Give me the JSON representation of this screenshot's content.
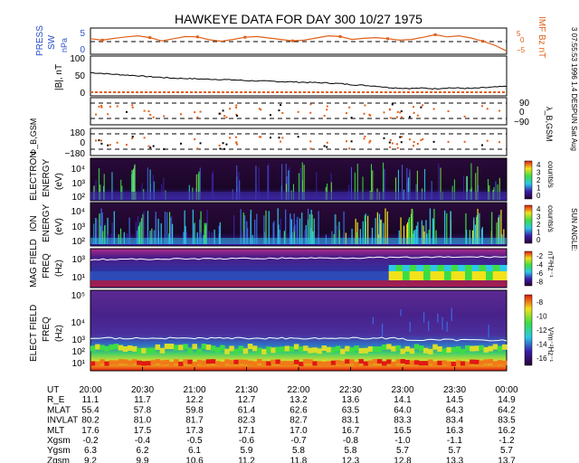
{
  "chart_data": {
    "type": "spectrogram",
    "title": "HAWKEYE DATA FOR DAY 300 10/27 1975",
    "side_note": "3 07:55:53 1996   1.4 DESPUN Sat Aug",
    "side_note2": "SUN ANGLE:",
    "time_ticks": [
      "20:00",
      "20:30",
      "21:00",
      "21:30",
      "22:00",
      "22:30",
      "23:00",
      "23:30",
      "00:00"
    ],
    "colors": {
      "accent": "#e0601a",
      "pressure_axis": "#2b50c8",
      "imf_axis": "#e0601a",
      "line": "#000000"
    },
    "panels": {
      "press": {
        "ylabel": [
          "PRESS",
          "SW",
          "nPa"
        ],
        "ticks": [
          "5",
          "0"
        ],
        "right_label": "IMF Bz nT",
        "right_ticks": [
          "5",
          "0",
          "−5"
        ],
        "pressure_series": [
          3.8,
          3.4,
          3.9,
          4.3,
          4.6,
          4.1,
          3.2,
          3.8,
          4.4,
          4.3,
          3.5,
          3.1,
          3.6,
          4.2,
          4.4,
          4.0,
          3.6,
          3.2,
          3.4,
          4.0,
          4.6,
          4.4,
          3.6,
          3.9,
          4.1,
          3.8,
          3.4,
          3.6,
          4.2,
          4.9,
          4.3,
          4.6,
          4.0,
          3.1,
          2.0,
          0.4
        ]
      },
      "b": {
        "ylabel": "|B|, nT",
        "ticks": [
          "100",
          "50",
          "0"
        ],
        "series": [
          57,
          55,
          52,
          50,
          48,
          45,
          43,
          41,
          40,
          39,
          38,
          37,
          36,
          34,
          33,
          32,
          31,
          30,
          29,
          28,
          27,
          25,
          22,
          20,
          18,
          14,
          12,
          11,
          12,
          10,
          13,
          12,
          11,
          13,
          15,
          17
        ]
      },
      "lambda": {
        "ylabel_right": "λ_B,GSM",
        "ticks": [
          "90",
          "0",
          "−90"
        ]
      },
      "phi": {
        "ylabel": "Φ_B,GSM",
        "ticks": [
          "180",
          "0",
          "−180"
        ]
      },
      "electron": {
        "ylabel": [
          "ELECTRON",
          "ENERGY",
          "(eV)"
        ],
        "ticks": [
          "10⁴",
          "10³",
          "10²"
        ],
        "unit": "counts/s",
        "cbar_ticks": [
          "4",
          "3",
          "2",
          "1",
          "0"
        ]
      },
      "ion": {
        "ylabel": [
          "ION",
          "ENERGY",
          "(eV)"
        ],
        "ticks": [
          "10⁴",
          "10³",
          "10²"
        ],
        "unit": "counts/s",
        "cbar_ticks": [
          "4",
          "3",
          "2",
          "1",
          "0"
        ]
      },
      "magfield": {
        "ylabel": [
          "MAG FIELD",
          "FREQ",
          "(Hz)"
        ],
        "ticks": [
          "10³",
          "10¹"
        ],
        "unit": "nT²Hz⁻¹",
        "cbar_ticks": [
          "-2",
          "-4",
          "-6",
          "-8"
        ]
      },
      "elecfield": {
        "ylabel": [
          "ELECT FIELD",
          "FREQ",
          "(Hz)"
        ],
        "ticks": [
          "10⁵",
          "10⁴",
          "10³",
          "10²",
          "10¹"
        ],
        "unit": "V²m⁻²Hz⁻¹",
        "cbar_ticks": [
          "-8",
          "-10",
          "-12",
          "-14",
          "-16"
        ]
      }
    },
    "ephemeris": {
      "headers": [
        "UT",
        "R_E",
        "MLAT",
        "INVLAT",
        "MLT",
        "Xgsm",
        "Ygsm",
        "Zgsm"
      ],
      "rows": [
        [
          "20:00",
          "20:30",
          "21:00",
          "21:30",
          "22:00",
          "22:30",
          "23:00",
          "23:30",
          "00:00"
        ],
        [
          "11.1",
          "11.7",
          "12.2",
          "12.7",
          "13.2",
          "13.6",
          "14.1",
          "14.5",
          "14.9"
        ],
        [
          "55.4",
          "57.8",
          "59.8",
          "61.4",
          "62.6",
          "63.5",
          "64.0",
          "64.3",
          "64.2"
        ],
        [
          "80.2",
          "81.0",
          "81.7",
          "82.3",
          "82.7",
          "83.1",
          "83.3",
          "83.4",
          "83.5"
        ],
        [
          "17.6",
          "17.5",
          "17.3",
          "17.1",
          "17.0",
          "16.7",
          "16.5",
          "16.3",
          "16.2"
        ],
        [
          "-0.2",
          "-0.4",
          "-0.5",
          "-0.6",
          "-0.7",
          "-0.8",
          "-1.0",
          "-1.1",
          "-1.2"
        ],
        [
          "6.3",
          "6.2",
          "6.1",
          "5.9",
          "5.8",
          "5.8",
          "5.7",
          "5.7",
          "5.7"
        ],
        [
          "9.2",
          "9.9",
          "10.6",
          "11.2",
          "11.8",
          "12.3",
          "12.8",
          "13.3",
          "13.7"
        ]
      ]
    }
  }
}
